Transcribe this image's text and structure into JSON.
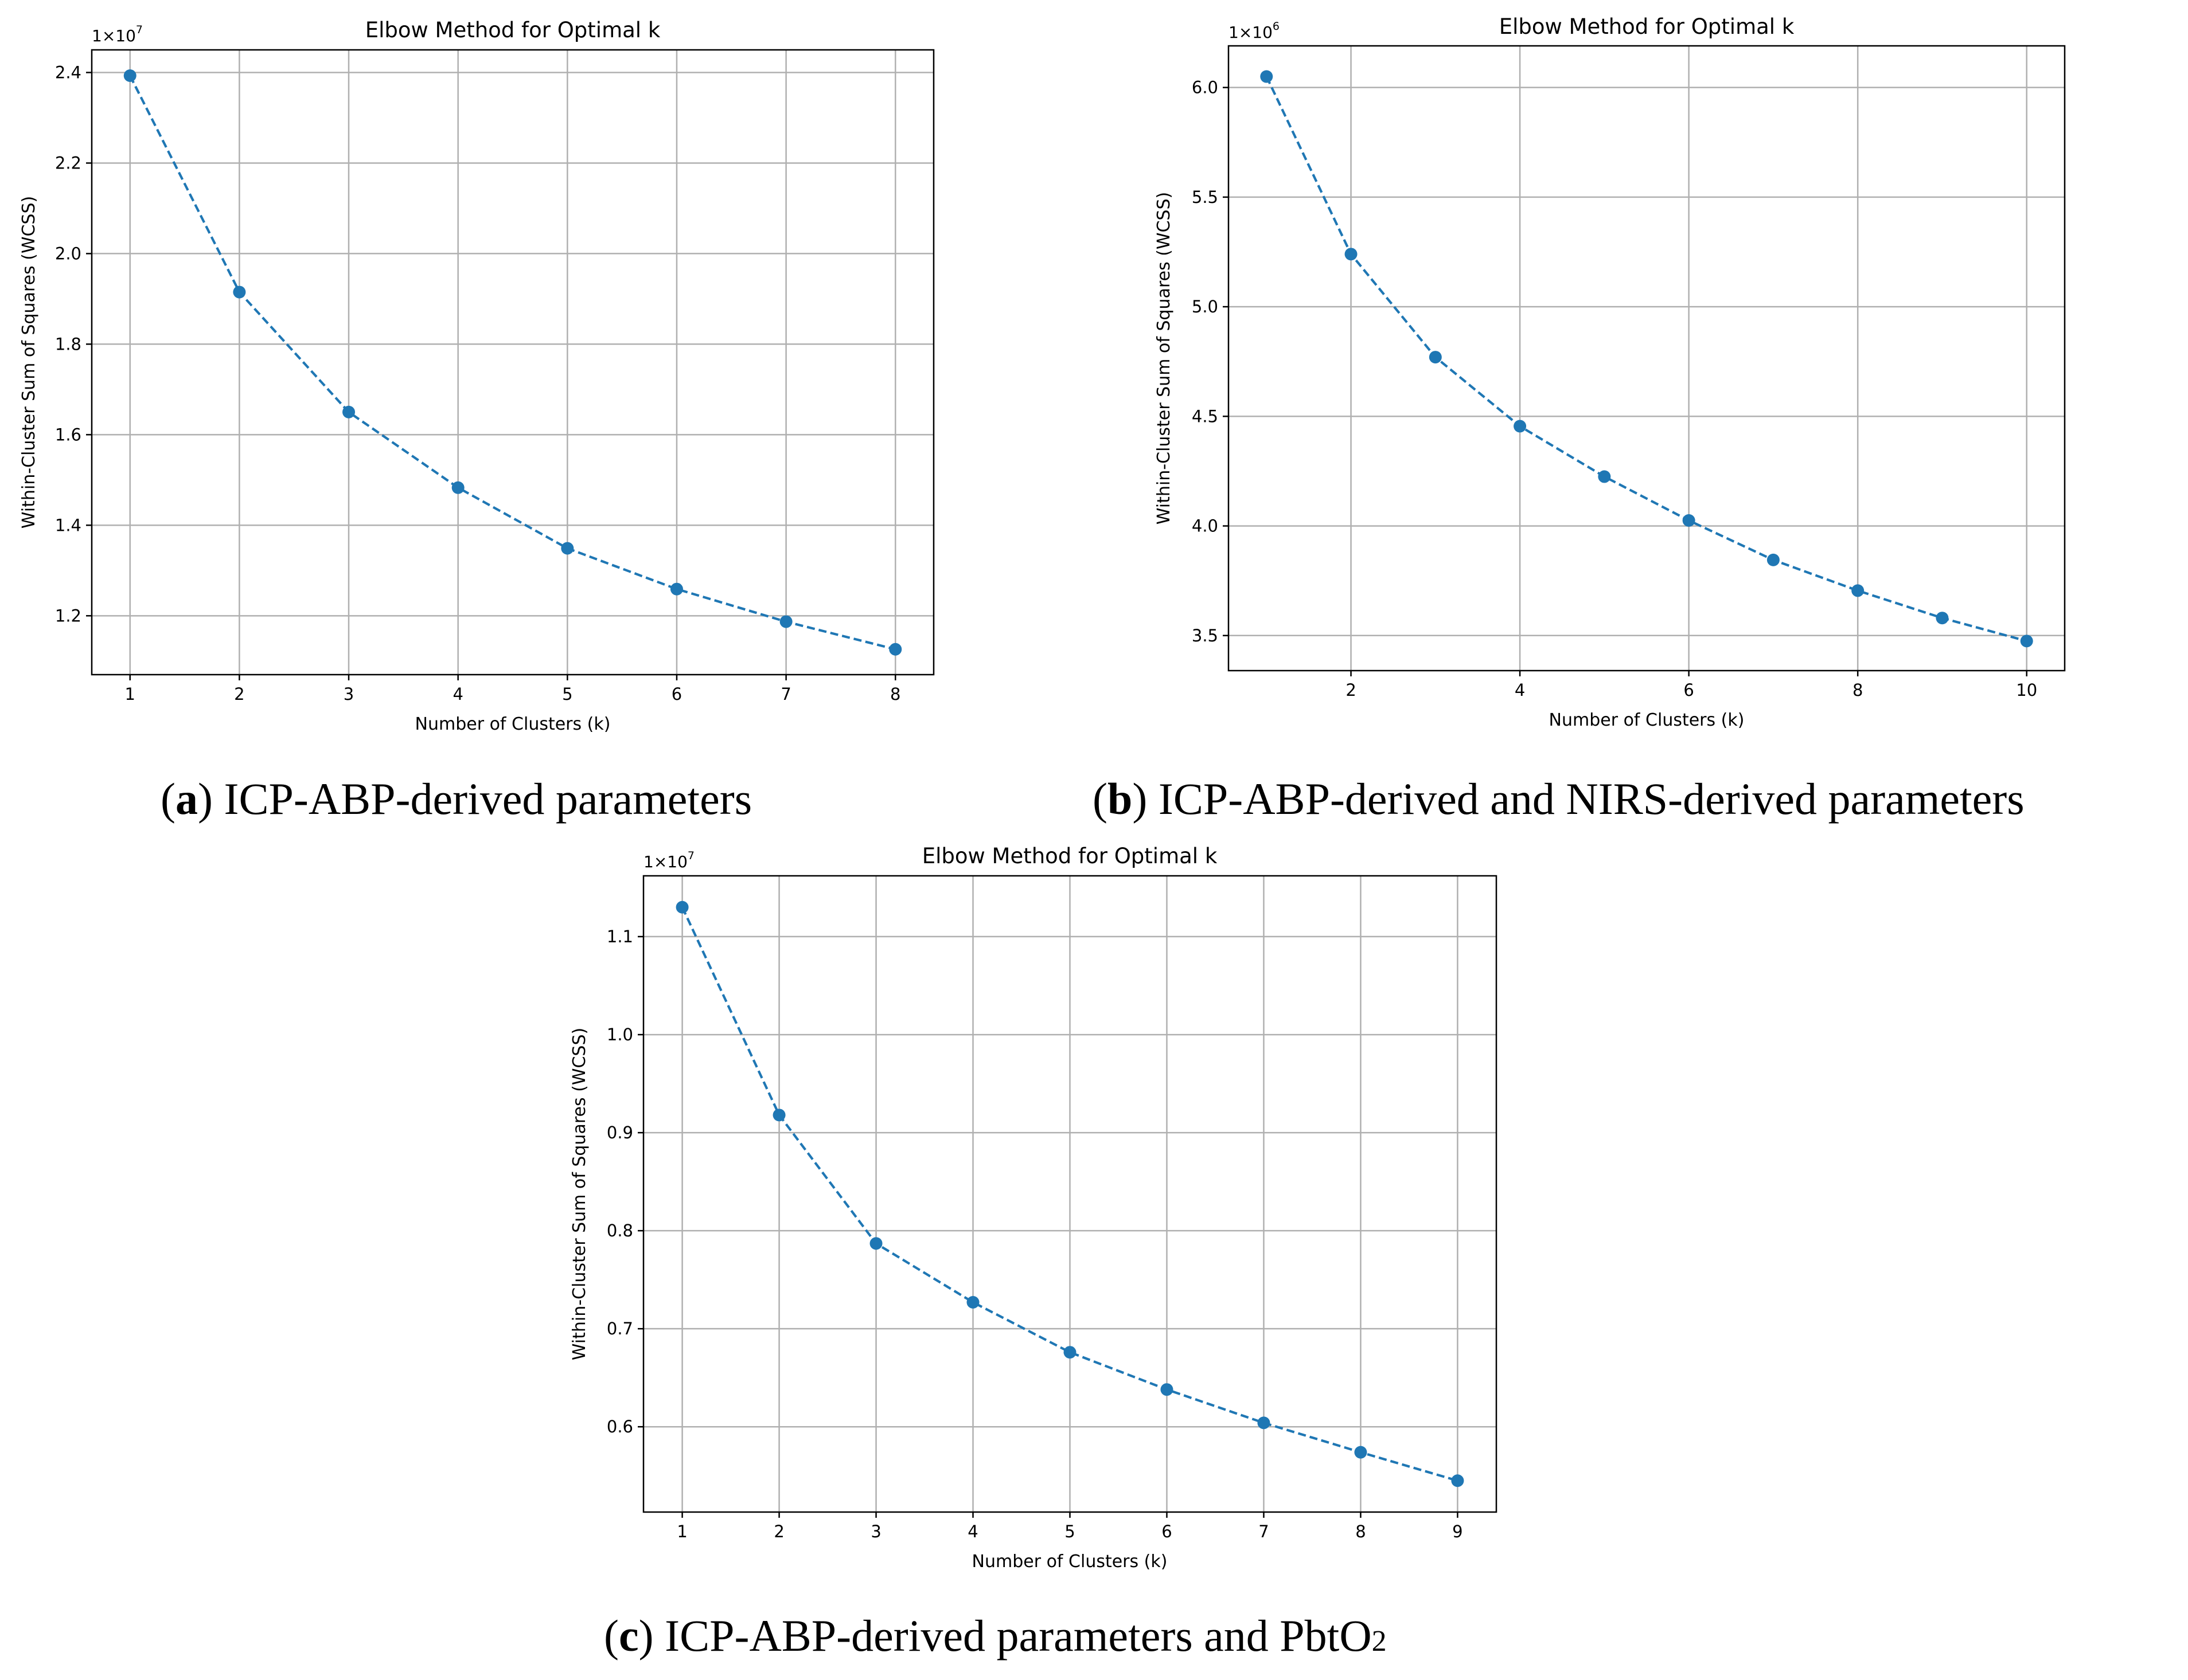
{
  "colors": {
    "series": "#1f77b4"
  },
  "chart_data": [
    {
      "id": "a",
      "type": "line",
      "title": "Elbow Method for Optimal k",
      "xlabel": "Number of Clusters (k)",
      "ylabel": "Within-Cluster Sum of Squares (WCSS)",
      "y_multiplier": "1×10",
      "y_multiplier_exp": "7",
      "x": [
        1,
        2,
        3,
        4,
        5,
        6,
        7,
        8
      ],
      "values": [
        2.393,
        1.915,
        1.65,
        1.483,
        1.349,
        1.259,
        1.187,
        1.126
      ],
      "xlim": [
        0.65,
        8.35
      ],
      "ylim": [
        1.07,
        2.45
      ],
      "xticks": [
        1,
        2,
        3,
        4,
        5,
        6,
        7,
        8
      ],
      "xtick_labels": [
        "1",
        "2",
        "3",
        "4",
        "5",
        "6",
        "7",
        "8"
      ],
      "yticks": [
        1.2,
        1.4,
        1.6,
        1.8,
        2.0,
        2.2,
        2.4
      ],
      "ytick_labels": [
        "1.2",
        "1.4",
        "1.6",
        "1.8",
        "2.0",
        "2.2",
        "2.4"
      ],
      "grid": true,
      "marker": "o",
      "linestyle": "dashed",
      "caption_letter": "a",
      "caption_text": " ICP-ABP-derived parameters"
    },
    {
      "id": "b",
      "type": "line",
      "title": "Elbow Method for Optimal k",
      "xlabel": "Number of Clusters (k)",
      "ylabel": "Within-Cluster Sum of Squares (WCSS)",
      "y_multiplier": "1×10",
      "y_multiplier_exp": "6",
      "x": [
        1,
        2,
        3,
        4,
        5,
        6,
        7,
        8,
        9,
        10
      ],
      "values": [
        6.05,
        5.24,
        4.77,
        4.455,
        4.225,
        4.025,
        3.845,
        3.705,
        3.58,
        3.475
      ],
      "xlim": [
        0.55,
        10.45
      ],
      "ylim": [
        3.34,
        6.19
      ],
      "xticks": [
        2,
        4,
        6,
        8,
        10
      ],
      "xtick_labels": [
        "2",
        "4",
        "6",
        "8",
        "10"
      ],
      "yticks": [
        3.5,
        4.0,
        4.5,
        5.0,
        5.5,
        6.0
      ],
      "ytick_labels": [
        "3.5",
        "4.0",
        "4.5",
        "5.0",
        "5.5",
        "6.0"
      ],
      "grid": true,
      "marker": "o",
      "linestyle": "dashed",
      "caption_letter": "b",
      "caption_text": " ICP-ABP-derived and NIRS-derived parameters"
    },
    {
      "id": "c",
      "type": "line",
      "title": "Elbow Method for Optimal k",
      "xlabel": "Number of Clusters (k)",
      "ylabel": "Within-Cluster Sum of Squares (WCSS)",
      "y_multiplier": "1×10",
      "y_multiplier_exp": "7",
      "x": [
        1,
        2,
        3,
        4,
        5,
        6,
        7,
        8,
        9
      ],
      "values": [
        1.13,
        0.918,
        0.787,
        0.727,
        0.676,
        0.638,
        0.604,
        0.574,
        0.545
      ],
      "xlim": [
        0.6,
        9.4
      ],
      "ylim": [
        0.513,
        1.162
      ],
      "xticks": [
        1,
        2,
        3,
        4,
        5,
        6,
        7,
        8,
        9
      ],
      "xtick_labels": [
        "1",
        "2",
        "3",
        "4",
        "5",
        "6",
        "7",
        "8",
        "9"
      ],
      "yticks": [
        0.6,
        0.7,
        0.8,
        0.9,
        1.0,
        1.1
      ],
      "ytick_labels": [
        "0.6",
        "0.7",
        "0.8",
        "0.9",
        "1.0",
        "1.1"
      ],
      "grid": true,
      "marker": "o",
      "linestyle": "dashed",
      "caption_letter": "c",
      "caption_text": " ICP-ABP-derived parameters and PbtO",
      "caption_subscript": "2"
    }
  ]
}
